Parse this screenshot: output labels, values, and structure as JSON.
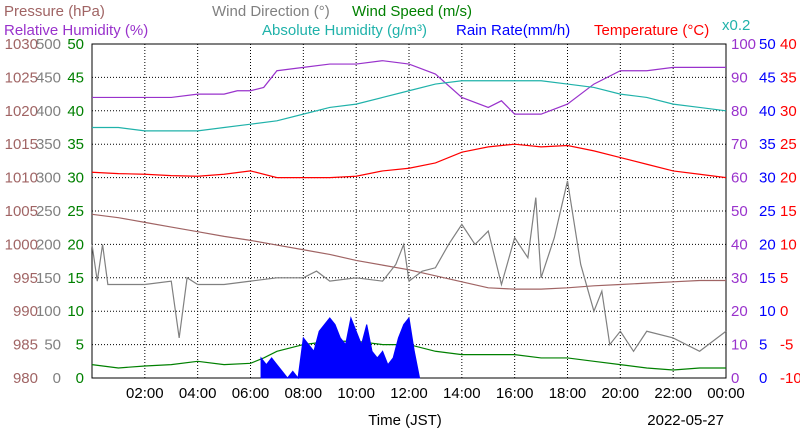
{
  "chart_data": {
    "type": "line",
    "date_label": "2022-05-27",
    "xlabel": "Time (JST)",
    "x_ticks": [
      "02:00",
      "04:00",
      "06:00",
      "08:00",
      "10:00",
      "12:00",
      "14:00",
      "16:00",
      "18:00",
      "20:00",
      "22:00",
      "00:00"
    ],
    "x_range_hours": [
      0,
      24
    ],
    "legend": [
      {
        "text": "Pressure (hPa)",
        "color": "#a06464"
      },
      {
        "text": "Wind Direction (°)",
        "color": "#808080"
      },
      {
        "text": "Wind Speed (m/s)",
        "color": "#008000"
      },
      {
        "text": "Relative Humidity (%)",
        "color": "#9932cc"
      },
      {
        "text": "Absolute Humidity (g/m³)",
        "color": "#20b2aa"
      },
      {
        "text": "Rain Rate(mm/h)",
        "color": "#0000ff"
      },
      {
        "text": "Temperature (°C)",
        "color": "#ff0000"
      },
      {
        "text": "x0.2",
        "color": "#20b2aa"
      }
    ],
    "axes": {
      "pressure": {
        "label": "Pressure (hPa)",
        "color": "#a06464",
        "ticks": [
          "1030",
          "1025",
          "1020",
          "1015",
          "1010",
          "1005",
          "1000",
          "995",
          "990",
          "985",
          "980"
        ],
        "range": [
          980,
          1030
        ]
      },
      "wind_direction": {
        "label": "Wind Direction (°)",
        "color": "#808080",
        "ticks": [
          "500",
          "450",
          "400",
          "350",
          "300",
          "250",
          "200",
          "150",
          "100",
          "50",
          "0"
        ],
        "range": [
          0,
          500
        ]
      },
      "wind_speed": {
        "label": "Wind Speed (m/s)",
        "color": "#008000",
        "ticks": [
          "50",
          "45",
          "40",
          "35",
          "30",
          "25",
          "20",
          "15",
          "10",
          "5",
          "0"
        ],
        "range": [
          0,
          50
        ]
      },
      "humidity": {
        "label": "Relative Humidity (%)",
        "color": "#9932cc",
        "ticks": [
          "100",
          "90",
          "80",
          "70",
          "60",
          "50",
          "40",
          "30",
          "20",
          "10",
          "0"
        ],
        "range": [
          0,
          100
        ]
      },
      "rain_rate": {
        "label": "Rain Rate(mm/h)",
        "color": "#0000ff",
        "ticks": [
          "50",
          "45",
          "40",
          "35",
          "30",
          "25",
          "20",
          "15",
          "10",
          "5",
          "0"
        ],
        "range": [
          0,
          50
        ]
      },
      "temperature": {
        "label": "Temperature (°C)",
        "color": "#ff0000",
        "ticks": [
          "40",
          "35",
          "30",
          "25",
          "20",
          "15",
          "10",
          "5",
          "0",
          "-5",
          "-10"
        ],
        "range": [
          -10,
          40
        ]
      }
    },
    "series": [
      {
        "name": "Pressure (hPa)",
        "color": "#a06464",
        "axis": "pressure",
        "x": [
          0,
          1,
          2,
          3,
          4,
          5,
          6,
          7,
          8,
          9,
          10,
          11,
          12,
          13,
          14,
          15,
          16,
          17,
          18,
          19,
          20,
          21,
          22,
          23,
          24
        ],
        "y": [
          1004.5,
          1004,
          1003.3,
          1002.6,
          1001.9,
          1001.2,
          1000.6,
          999.9,
          999.2,
          998.5,
          997.6,
          996.9,
          996.2,
          995.3,
          994.4,
          993.5,
          993.3,
          993.3,
          993.5,
          993.8,
          994,
          994.2,
          994.4,
          994.6,
          994.6
        ]
      },
      {
        "name": "Wind Direction (°)",
        "color": "#808080",
        "axis": "wind_direction",
        "x": [
          0,
          0.2,
          0.4,
          0.6,
          1,
          2,
          3,
          3.3,
          3.6,
          4,
          5,
          6,
          7,
          8,
          8.5,
          9,
          10,
          11,
          11.5,
          11.8,
          12,
          12.5,
          13,
          13.5,
          14,
          14.5,
          15,
          15.5,
          16,
          16.5,
          16.8,
          17,
          17.5,
          18,
          18.5,
          19,
          19.3,
          19.6,
          20,
          20.5,
          21,
          22,
          23,
          24
        ],
        "y": [
          200,
          145,
          200,
          140,
          140,
          140,
          145,
          60,
          150,
          140,
          140,
          145,
          150,
          150,
          160,
          145,
          150,
          145,
          170,
          200,
          145,
          160,
          165,
          200,
          230,
          200,
          220,
          140,
          210,
          180,
          270,
          150,
          210,
          295,
          170,
          100,
          130,
          50,
          70,
          40,
          70,
          60,
          40,
          70
        ]
      },
      {
        "name": "Wind Speed (m/s)",
        "color": "#008000",
        "axis": "wind_speed",
        "x": [
          0,
          1,
          2,
          3,
          4,
          5,
          6,
          6.5,
          7,
          8,
          9,
          10,
          11,
          12,
          13,
          14,
          15,
          16,
          17,
          18,
          19,
          20,
          21,
          22,
          23,
          24
        ],
        "y": [
          2,
          1.5,
          1.8,
          2,
          2.5,
          2,
          2.2,
          3,
          4,
          5,
          5.5,
          5.5,
          5,
          5,
          4,
          3.5,
          3.5,
          3.5,
          3,
          3,
          2.5,
          2,
          1.5,
          1.2,
          1.5,
          1.5
        ]
      },
      {
        "name": "Relative Humidity (%)",
        "color": "#9932cc",
        "axis": "humidity",
        "x": [
          0,
          1,
          2,
          3,
          4,
          5,
          5.5,
          6,
          6.5,
          7,
          8,
          9,
          10,
          11,
          12,
          13,
          14,
          15,
          15.5,
          16,
          17,
          18,
          19,
          20,
          21,
          22,
          23,
          24
        ],
        "y": [
          84,
          84,
          84,
          84,
          85,
          85,
          86,
          86,
          87,
          92,
          93,
          94,
          94,
          95,
          94,
          91,
          84,
          81,
          83,
          79,
          79,
          82,
          88,
          92,
          92,
          93,
          93,
          93
        ]
      },
      {
        "name": "Absolute Humidity (g/m³)",
        "color": "#20b2aa",
        "axis": "humidity",
        "x": [
          0,
          1,
          2,
          3,
          4,
          5,
          6,
          7,
          8,
          9,
          10,
          11,
          12,
          13,
          14,
          15,
          16,
          17,
          18,
          19,
          20,
          21,
          22,
          23,
          24
        ],
        "y": [
          75,
          75,
          74,
          74,
          74,
          75,
          76,
          77,
          79,
          81,
          82,
          84,
          86,
          88,
          89,
          89,
          89,
          89,
          88,
          87,
          85,
          84,
          82,
          81,
          80
        ]
      },
      {
        "name": "Rain Rate(mm/h)",
        "color": "#0000ff",
        "axis": "rain_rate",
        "x": [
          6.4,
          6.6,
          6.8,
          7,
          7.2,
          7.4,
          7.6,
          7.8,
          8,
          8.2,
          8.4,
          8.6,
          8.8,
          9,
          9.2,
          9.4,
          9.6,
          9.8,
          10,
          10.2,
          10.4,
          10.6,
          10.8,
          11,
          11.2,
          11.4,
          11.6,
          11.8,
          12,
          12.2,
          12.4
        ],
        "y": [
          3,
          2,
          3,
          2,
          1,
          0,
          1,
          0,
          6,
          5,
          4,
          7,
          8,
          9,
          8,
          6,
          5,
          9,
          7,
          5,
          8,
          4,
          3,
          4,
          2,
          3,
          6,
          8,
          9,
          4,
          0
        ]
      },
      {
        "name": "Temperature (°C)",
        "color": "#ff0000",
        "axis": "temperature",
        "x": [
          0,
          1,
          2,
          3,
          4,
          5,
          6,
          7,
          8,
          9,
          10,
          11,
          12,
          13,
          14,
          15,
          16,
          17,
          18,
          19,
          20,
          21,
          22,
          23,
          24
        ],
        "y": [
          20.8,
          20.6,
          20.5,
          20.3,
          20.2,
          20.5,
          21,
          20,
          20,
          20,
          20.2,
          21,
          21.4,
          22.2,
          23.8,
          24.6,
          25,
          24.6,
          24.8,
          24,
          23,
          22,
          21,
          20.5,
          20
        ]
      }
    ]
  }
}
